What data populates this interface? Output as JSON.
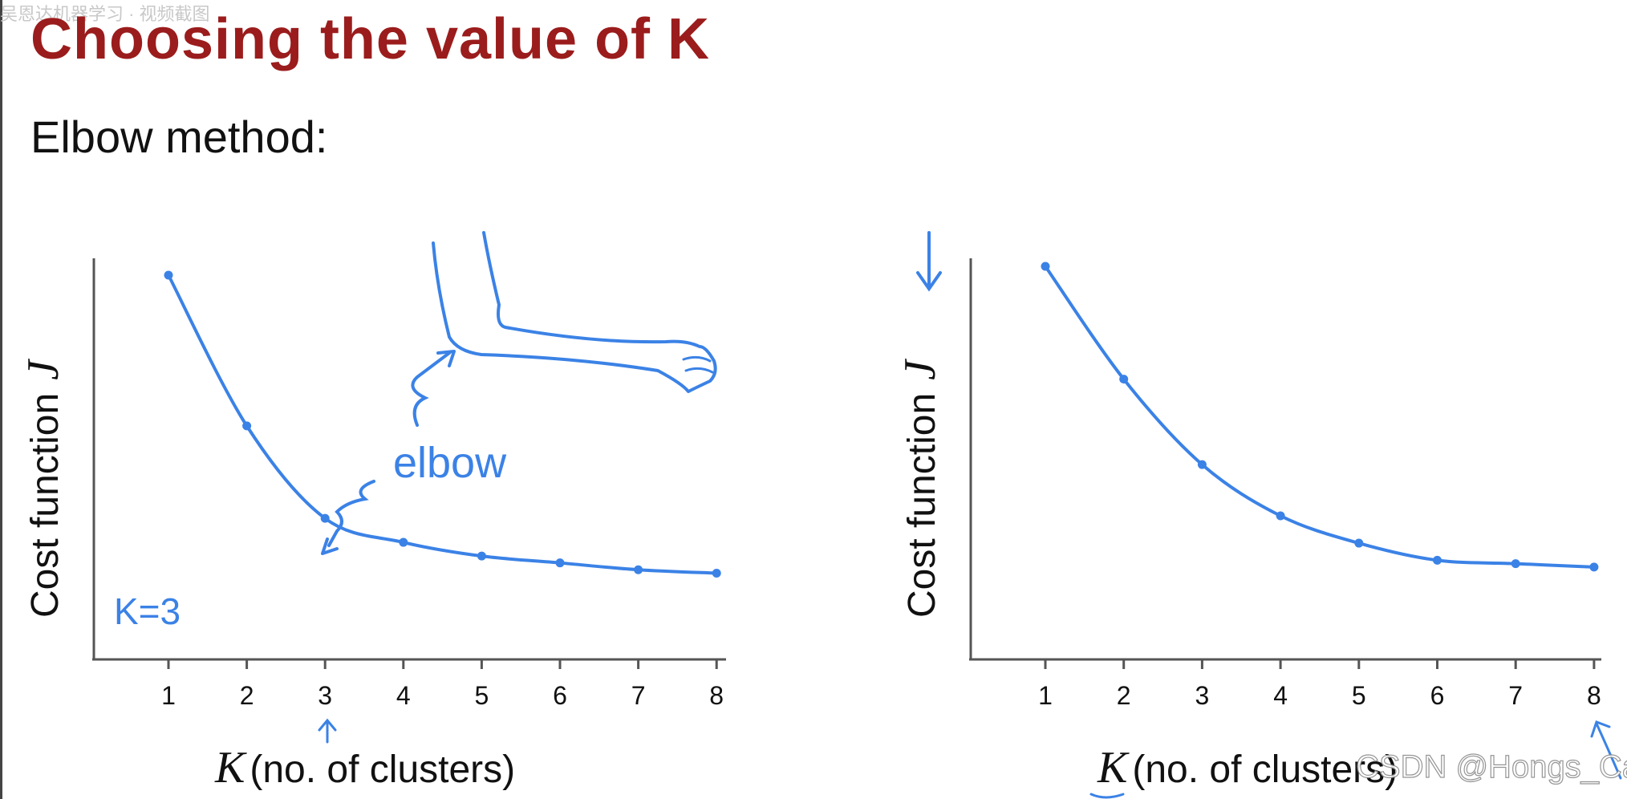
{
  "slide": {
    "title": "Choosing the value of K",
    "subtitle": "Elbow method:",
    "watermark_top": "吴恩达机器学习 · 视频截图",
    "watermark_bottom": "CSDN @Hongs_Cai"
  },
  "colors": {
    "title": "#9b1c1c",
    "curve": "#3b82e6",
    "axis": "#555555"
  },
  "chart_data": [
    {
      "type": "line",
      "x": [
        1,
        2,
        3,
        4,
        5,
        6,
        7,
        8
      ],
      "series": [
        {
          "values": [
            100,
            56,
            29,
            22,
            18,
            16,
            14,
            13
          ]
        }
      ],
      "xlabel": "(no. of clusters)",
      "xlabel_var": "K",
      "ylabel": "Cost function",
      "ylabel_var": "J",
      "xticks": [
        "1",
        "2",
        "3",
        "4",
        "5",
        "6",
        "7",
        "8"
      ],
      "xlim": [
        0,
        8
      ],
      "ylim": [
        0,
        100
      ],
      "annotations": {
        "elbow": "elbow",
        "k_note": "K=3"
      }
    },
    {
      "type": "line",
      "x": [
        1,
        2,
        3,
        4,
        5,
        6,
        7,
        8
      ],
      "series": [
        {
          "values": [
            100,
            67,
            42,
            27,
            19,
            14,
            13,
            12
          ]
        }
      ],
      "xlabel": "(no. of clusters)",
      "xlabel_var": "K",
      "ylabel": "Cost function",
      "ylabel_var": "J",
      "xticks": [
        "1",
        "2",
        "3",
        "4",
        "5",
        "6",
        "7",
        "8"
      ],
      "xlim": [
        0,
        8
      ],
      "ylim": [
        0,
        100
      ]
    }
  ]
}
